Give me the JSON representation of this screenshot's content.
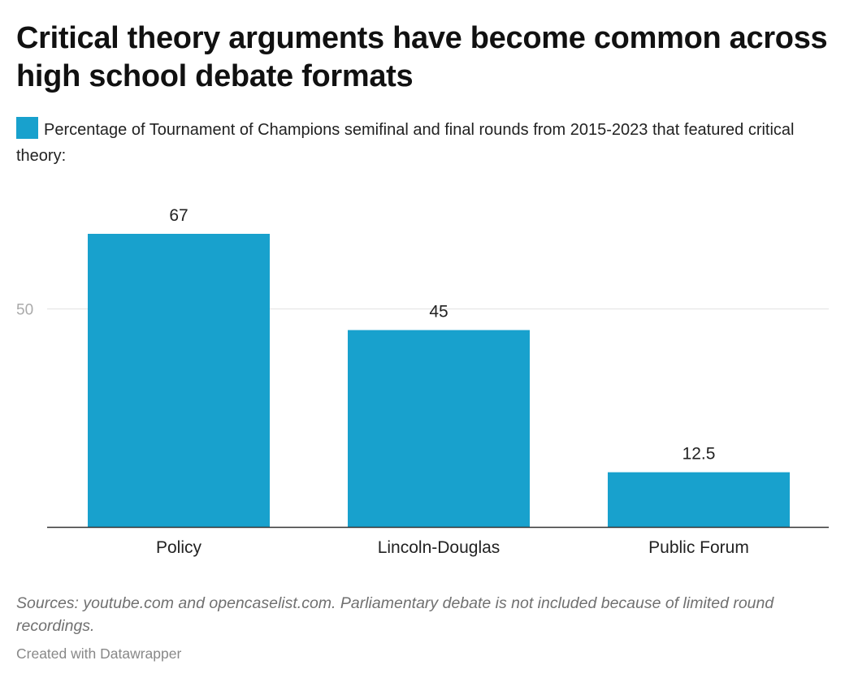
{
  "title": "Critical theory arguments have become common across high school debate formats",
  "legend": {
    "label": "Percentage of Tournament of Champions semifinal and final rounds from 2015-2023 that featured critical theory:",
    "color": "#18a1cd"
  },
  "chart_data": {
    "type": "bar",
    "categories": [
      "Policy",
      "Lincoln-Douglas",
      "Public Forum"
    ],
    "values": [
      67,
      45,
      12.5
    ],
    "value_labels": [
      "67",
      "45",
      "12.5"
    ],
    "series_name": "Percentage of Tournament of Champions semifinal and final rounds from 2015-2023 that featured critical theory:",
    "bar_color": "#18a1cd",
    "yticks": [
      50
    ],
    "ylim": [
      0,
      67
    ],
    "grid": true
  },
  "notes": "Sources: youtube.com and opencaselist.com. Parliamentary debate is not included because of limited round recordings.",
  "byline": "Created with Datawrapper"
}
